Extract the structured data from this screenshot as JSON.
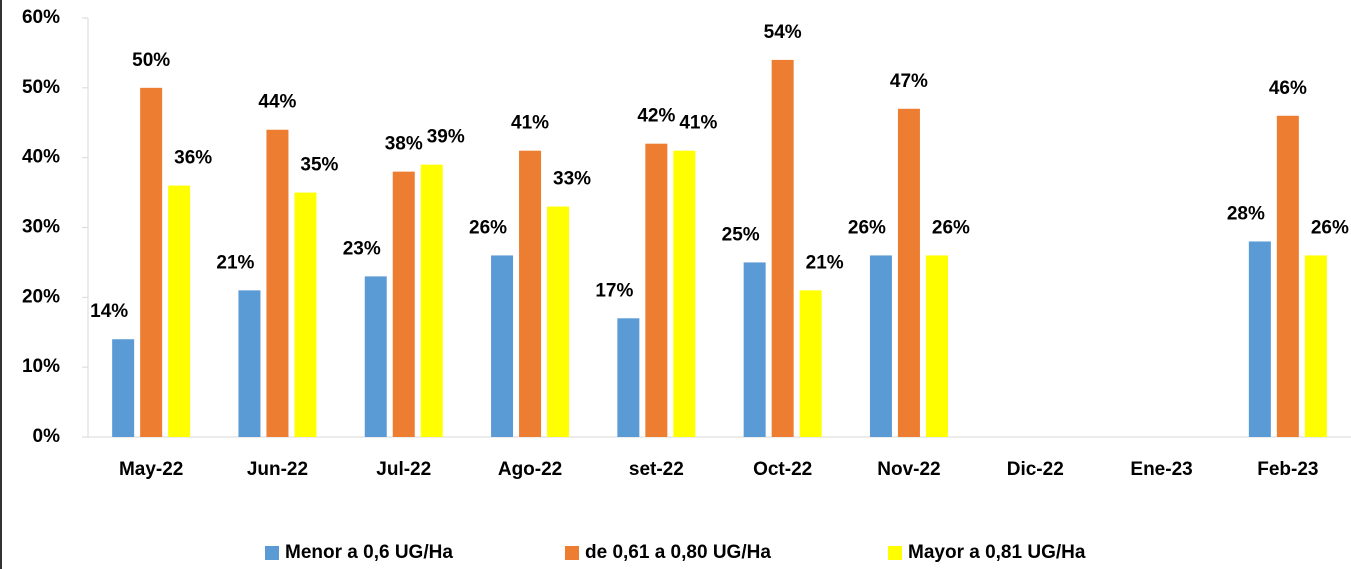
{
  "chart_data": {
    "type": "bar",
    "categories": [
      "May-22",
      "Jun-22",
      "Jul-22",
      "Ago-22",
      "set-22",
      "Oct-22",
      "Nov-22",
      "Dic-22",
      "Ene-23",
      "Feb-23"
    ],
    "series": [
      {
        "name": "Menor a 0,6 UG/Ha",
        "color": "#5b9bd5",
        "values": [
          14,
          21,
          23,
          26,
          17,
          25,
          26,
          null,
          null,
          28
        ],
        "value_labels": [
          "14%",
          "21%",
          "23%",
          "26%",
          "17%",
          "25%",
          "26%",
          null,
          null,
          "28%"
        ]
      },
      {
        "name": "de 0,61 a 0,80 UG/Ha",
        "color": "#ed7d31",
        "values": [
          50,
          44,
          38,
          41,
          42,
          54,
          47,
          null,
          null,
          46
        ],
        "value_labels": [
          "50%",
          "44%",
          "38%",
          "41%",
          "42%",
          "54%",
          "47%",
          null,
          null,
          "46%"
        ]
      },
      {
        "name": "Mayor a 0,81 UG/Ha",
        "color": "#ffff00",
        "values": [
          36,
          35,
          39,
          33,
          41,
          21,
          26,
          null,
          null,
          26
        ],
        "value_labels": [
          "36%",
          "35%",
          "39%",
          "33%",
          "41%",
          "21%",
          "26%",
          null,
          null,
          "26%"
        ]
      }
    ],
    "ylim": [
      0,
      60
    ],
    "yticks": [
      {
        "value": 0,
        "label": "0%"
      },
      {
        "value": 10,
        "label": "10%"
      },
      {
        "value": 20,
        "label": "20%"
      },
      {
        "value": 30,
        "label": "30%"
      },
      {
        "value": 40,
        "label": "40%"
      },
      {
        "value": 50,
        "label": "50%"
      },
      {
        "value": 60,
        "label": "60%"
      }
    ],
    "legend": "bottom"
  }
}
